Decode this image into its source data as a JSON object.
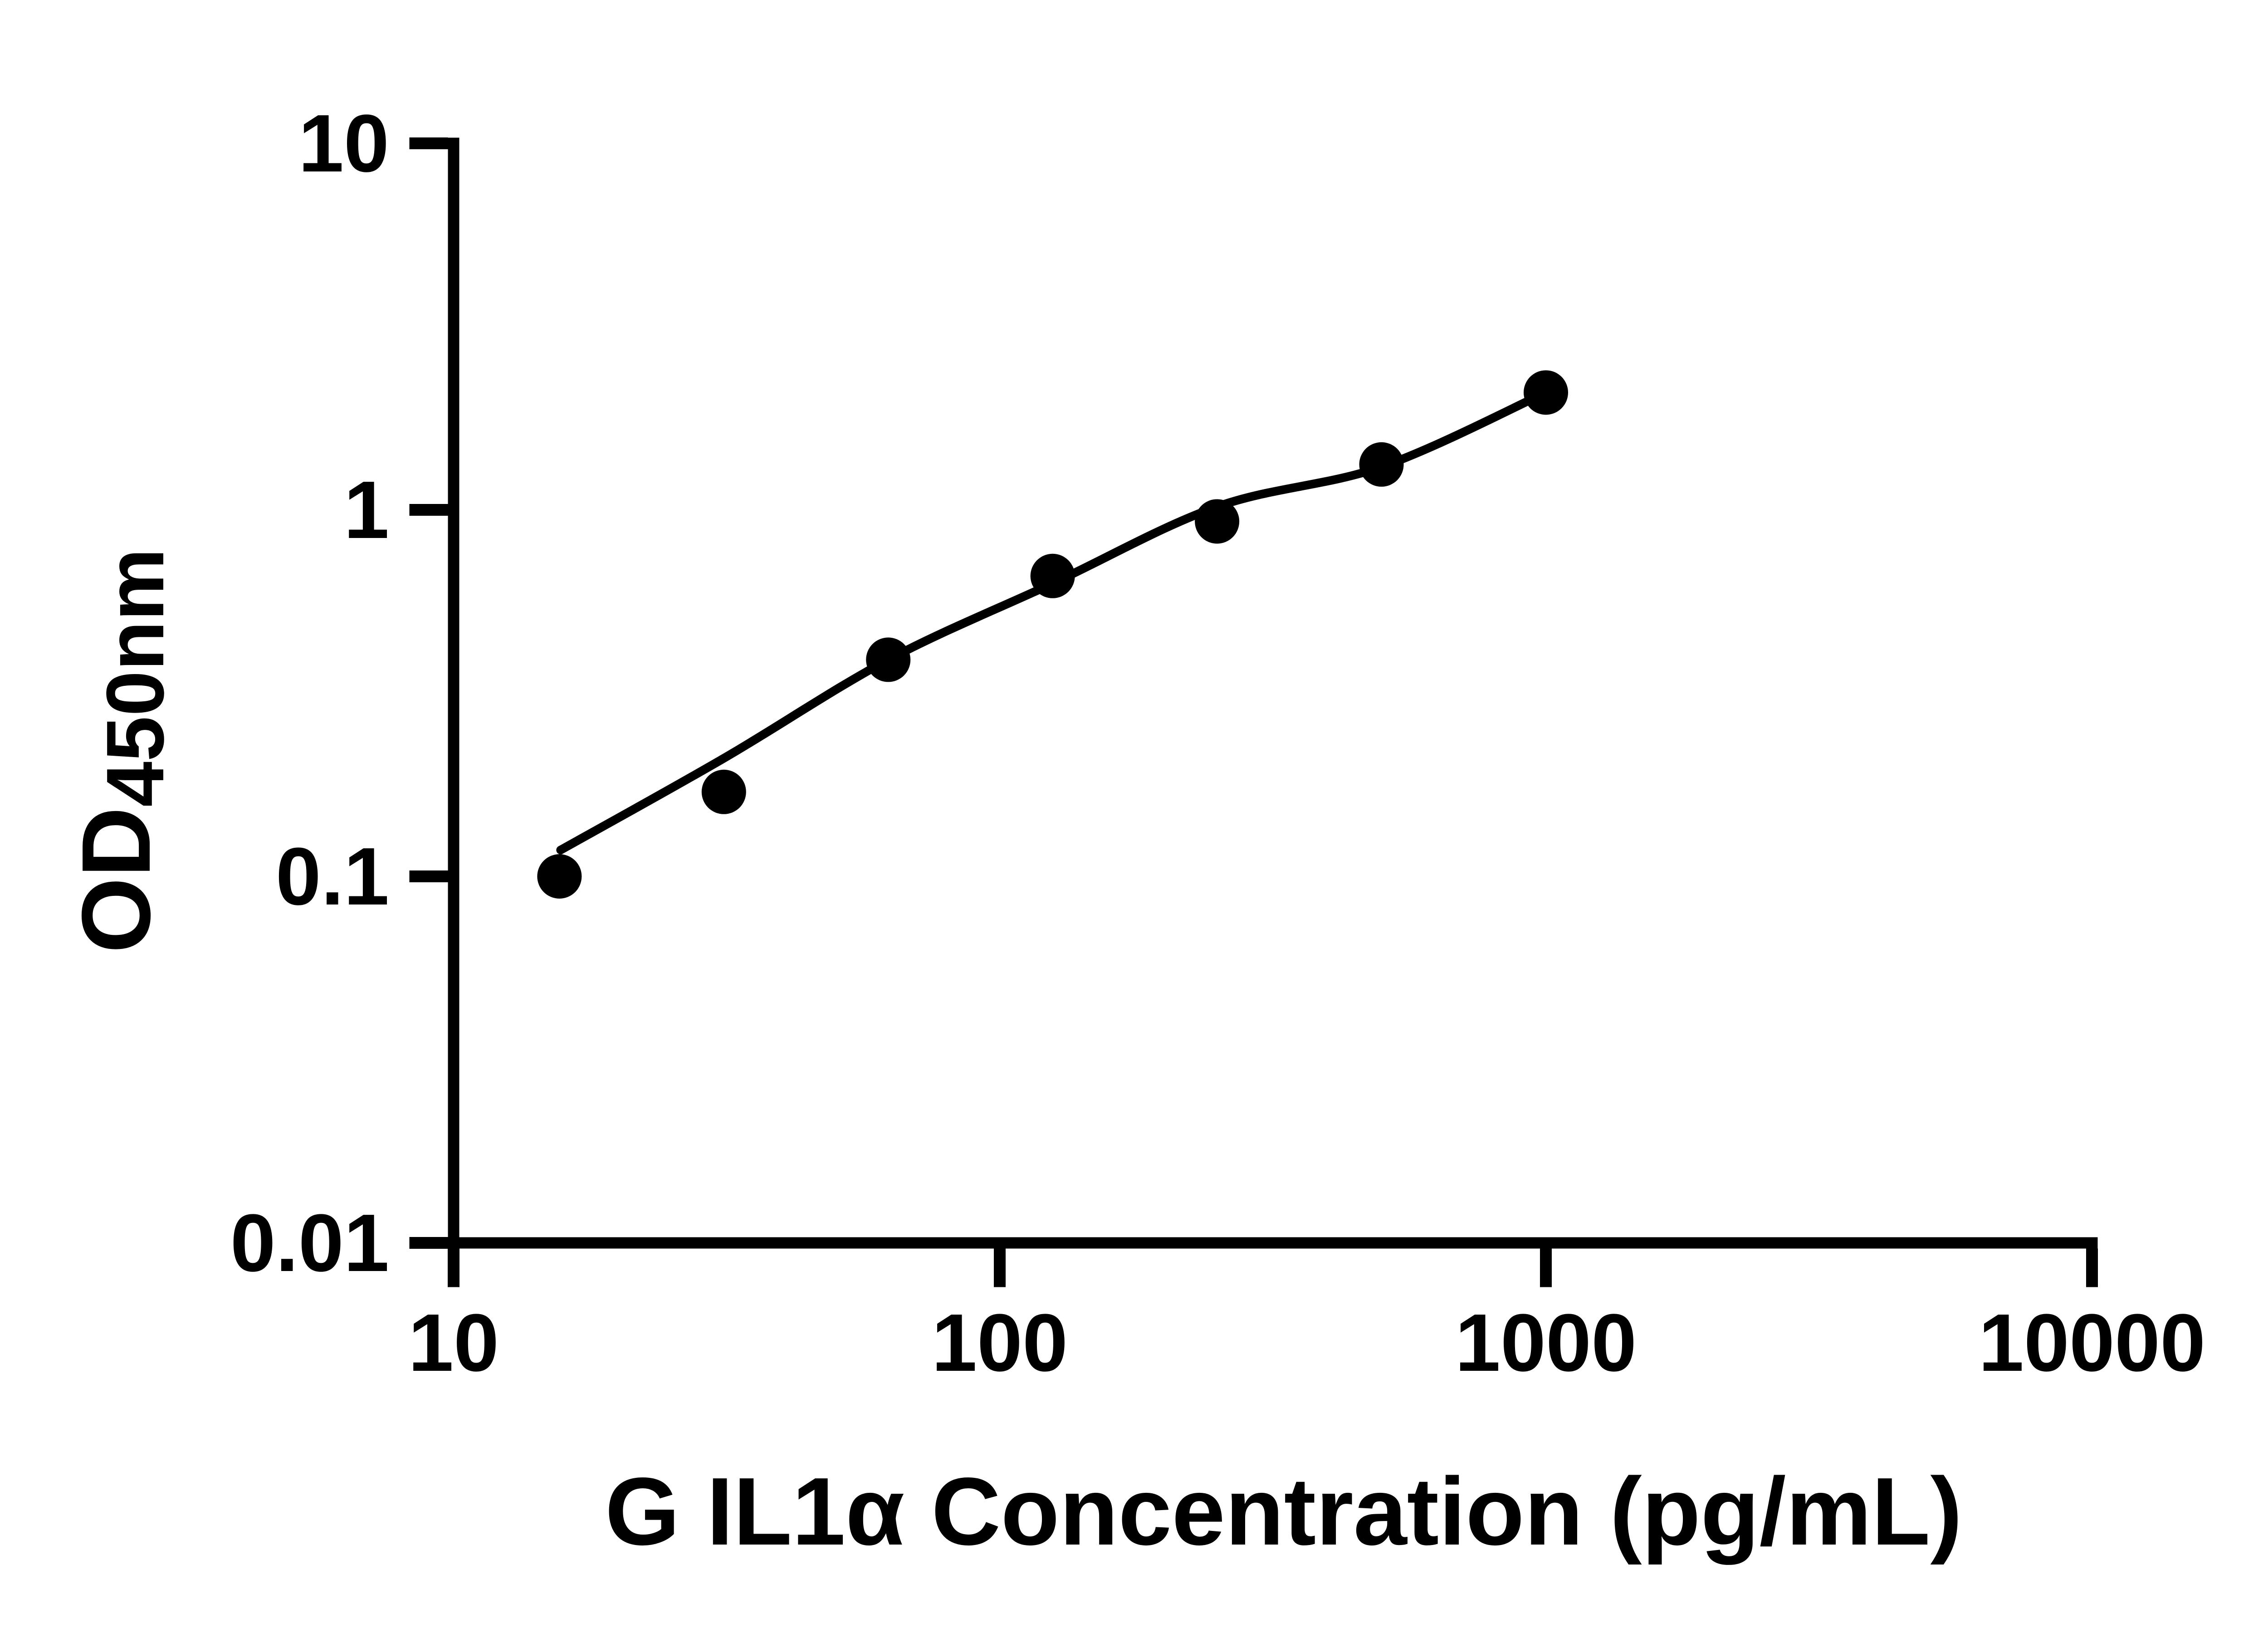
{
  "chart_data": {
    "type": "scatter",
    "title": "",
    "xlabel": "G IL1α Concentration (pg/mL)",
    "ylabel_main": "OD",
    "ylabel_sub": "450nm",
    "x_scale": "log10",
    "y_scale": "log10",
    "xlim": [
      10,
      10000
    ],
    "ylim": [
      0.01,
      10
    ],
    "grid": false,
    "legend": null,
    "x_ticks": [
      10,
      100,
      1000,
      10000
    ],
    "x_tick_labels": [
      "10",
      "100",
      "1000",
      "10000"
    ],
    "y_ticks": [
      10,
      1,
      0.1,
      0.01
    ],
    "y_tick_labels": [
      "10",
      "1",
      "0.1",
      "0.01"
    ],
    "series": [
      {
        "name": "standard-points",
        "type": "scatter",
        "marker": "filled-circle",
        "color": "#000000",
        "x": [
          15.625,
          31.25,
          62.5,
          125,
          250,
          500,
          1000
        ],
        "y": [
          0.1,
          0.17,
          0.39,
          0.66,
          0.93,
          1.33,
          2.09
        ]
      },
      {
        "name": "fitted-curve",
        "type": "line",
        "color": "#000000",
        "x": [
          15.7,
          31.25,
          62.5,
          125,
          250,
          500,
          1000
        ],
        "y": [
          0.118,
          0.21,
          0.39,
          0.63,
          1.02,
          1.31,
          2.09
        ]
      }
    ]
  },
  "colors": {
    "foreground": "#000000",
    "background": "#ffffff"
  }
}
